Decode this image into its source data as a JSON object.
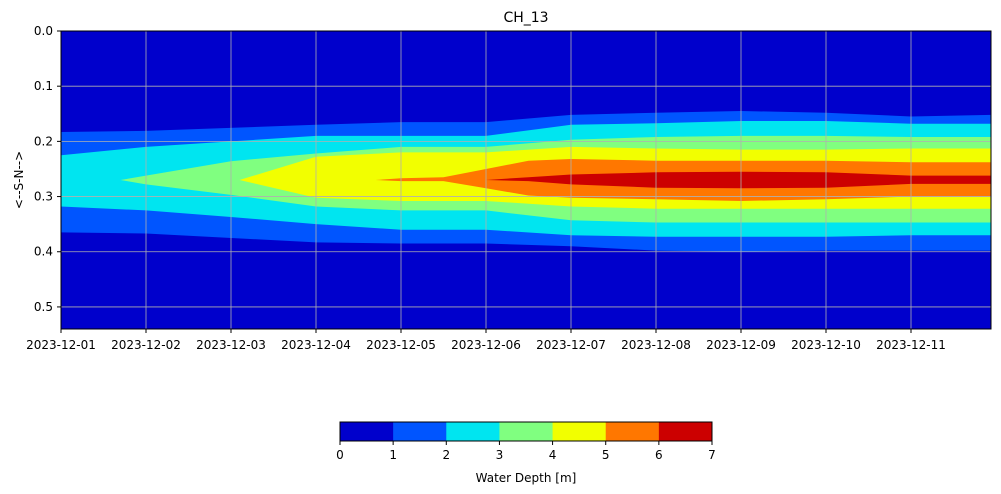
{
  "chart_data": {
    "type": "heatmap",
    "title": "CH_13",
    "ylabel": "<--S-N-->",
    "xlabel": "",
    "x_ticks": [
      "2023-12-01",
      "2023-12-02",
      "2023-12-03",
      "2023-12-04",
      "2023-12-05",
      "2023-12-06",
      "2023-12-07",
      "2023-12-08",
      "2023-12-09",
      "2023-12-10",
      "2023-12-11"
    ],
    "xlim": [
      "2023-12-01",
      "2023-12-11T23:00"
    ],
    "y_ticks": [
      "0.0",
      "0.1",
      "0.2",
      "0.3",
      "0.4",
      "0.5"
    ],
    "ylim": [
      0.54,
      0.0
    ],
    "y_inverted": true,
    "grid": true,
    "colorbar": {
      "label": "Water Depth [m]",
      "ticks": [
        "0",
        "1",
        "2",
        "3",
        "4",
        "5",
        "6",
        "7"
      ],
      "levels": [
        0,
        1,
        2,
        3,
        4,
        5,
        6,
        7
      ],
      "colors": [
        "#0000cc",
        "#0055ff",
        "#00e5f0",
        "#80ff80",
        "#f2ff00",
        "#ff7700",
        "#cc0000"
      ]
    },
    "background_level_color": "#0000cc",
    "contour_bands": [
      {
        "level": 1,
        "color": "#0055ff",
        "time": [
          0,
          1,
          3,
          4,
          5,
          6,
          7,
          8,
          9,
          10,
          10.95
        ],
        "top": [
          0.183,
          0.181,
          0.17,
          0.165,
          0.165,
          0.152,
          0.148,
          0.145,
          0.148,
          0.155,
          0.152
        ],
        "bottom": [
          0.365,
          0.367,
          0.383,
          0.385,
          0.385,
          0.39,
          0.398,
          0.4,
          0.398,
          0.398,
          0.398
        ]
      },
      {
        "level": 2,
        "color": "#00e5f0",
        "time": [
          0,
          1,
          2,
          3,
          4,
          5,
          6,
          7,
          8,
          9,
          10,
          10.95
        ],
        "top": [
          0.225,
          0.21,
          0.2,
          0.19,
          0.19,
          0.19,
          0.17,
          0.167,
          0.163,
          0.163,
          0.168,
          0.168
        ],
        "bottom": [
          0.318,
          0.325,
          0.337,
          0.35,
          0.36,
          0.36,
          0.37,
          0.373,
          0.373,
          0.373,
          0.37,
          0.37
        ]
      },
      {
        "level": 3,
        "color": "#80ff80",
        "time": [
          0.7,
          1,
          2,
          3,
          4,
          5,
          6,
          7,
          8,
          9,
          10,
          10.95
        ],
        "top": [
          0.27,
          0.262,
          0.236,
          0.222,
          0.21,
          0.21,
          0.197,
          0.192,
          0.19,
          0.19,
          0.192,
          0.192
        ],
        "bottom": [
          0.27,
          0.278,
          0.297,
          0.318,
          0.325,
          0.325,
          0.343,
          0.347,
          0.347,
          0.347,
          0.347,
          0.347
        ]
      },
      {
        "level": 4,
        "color": "#f2ff00",
        "time": [
          2.1,
          3,
          4,
          5,
          6,
          7,
          8,
          9,
          10,
          10.95
        ],
        "top": [
          0.27,
          0.228,
          0.22,
          0.22,
          0.21,
          0.213,
          0.215,
          0.215,
          0.213,
          0.213
        ],
        "bottom": [
          0.27,
          0.302,
          0.308,
          0.308,
          0.318,
          0.322,
          0.322,
          0.322,
          0.322,
          0.322
        ]
      },
      {
        "level": 5,
        "color": "#ff7700",
        "time": [
          3.7,
          4,
          4.5,
          5,
          5.5,
          6,
          7,
          8,
          9,
          10,
          10.95
        ],
        "top": [
          0.27,
          0.267,
          0.265,
          0.25,
          0.235,
          0.232,
          0.235,
          0.235,
          0.235,
          0.238,
          0.238
        ],
        "bottom": [
          0.27,
          0.272,
          0.272,
          0.285,
          0.298,
          0.302,
          0.305,
          0.308,
          0.305,
          0.3,
          0.3
        ]
      },
      {
        "level": 6,
        "color": "#cc0000",
        "time": [
          4.5,
          5,
          5.5,
          6,
          7,
          8,
          9,
          10,
          10.95
        ],
        "top": [
          0.27,
          0.27,
          0.265,
          0.26,
          0.256,
          0.255,
          0.256,
          0.262,
          0.262
        ],
        "bottom": [
          0.27,
          0.27,
          0.272,
          0.278,
          0.284,
          0.285,
          0.284,
          0.277,
          0.277
        ]
      }
    ]
  }
}
